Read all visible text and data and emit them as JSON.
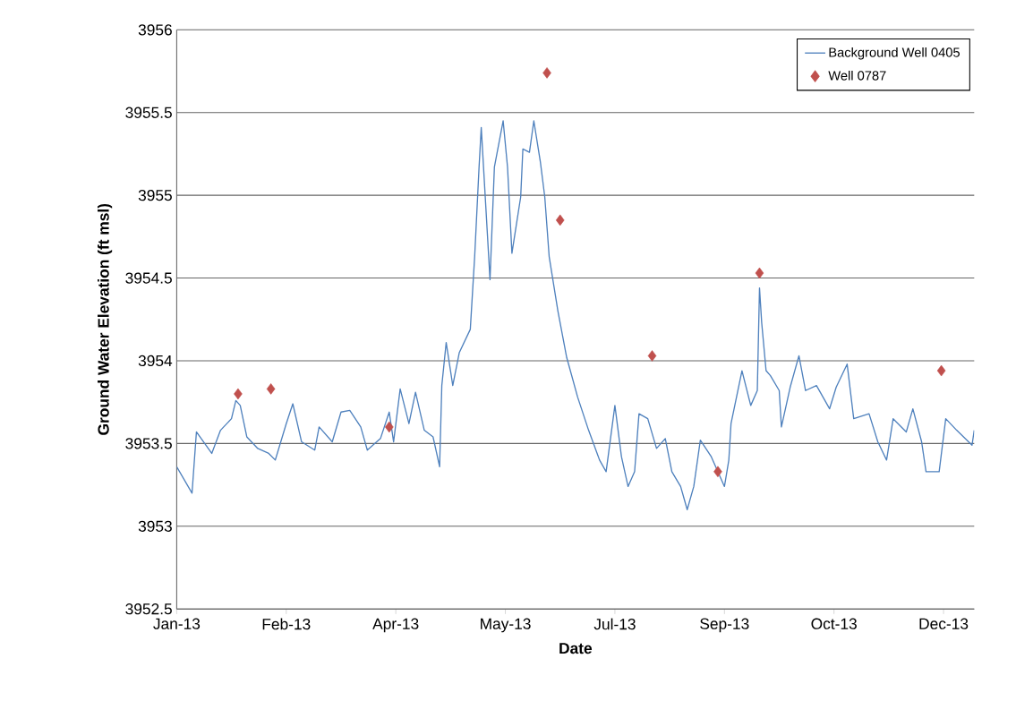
{
  "chart_data": {
    "type": "line",
    "xlabel": "Date",
    "ylabel": "Ground Water Elevation (ft msl)",
    "xlim": [
      "2013-01-01",
      "2013-12-31"
    ],
    "xticks": [
      {
        "value": "2013-01-01",
        "label": "Jan-13"
      },
      {
        "value": "2013-02-20",
        "label": "Feb-13"
      },
      {
        "value": "2013-04-11",
        "label": "Apr-13"
      },
      {
        "value": "2013-05-31",
        "label": "May-13"
      },
      {
        "value": "2013-07-20",
        "label": "Jul-13"
      },
      {
        "value": "2013-09-08",
        "label": "Sep-13"
      },
      {
        "value": "2013-10-28",
        "label": "Oct-13"
      },
      {
        "value": "2013-12-17",
        "label": "Dec-13"
      }
    ],
    "ylim": [
      3952.5,
      3956
    ],
    "yticks": [
      3952.5,
      3953,
      3953.5,
      3954,
      3954.5,
      3955,
      3955.5,
      3956
    ],
    "grid": "y",
    "legend": "top right",
    "series": [
      {
        "name": "Background Well 0405",
        "color": "#4f81bd",
        "line_style": "solid",
        "x": [
          "2013-01-01",
          "2013-01-08",
          "2013-01-10",
          "2013-01-17",
          "2013-01-21",
          "2013-01-26",
          "2013-01-28",
          "2013-01-30",
          "2013-02-02",
          "2013-02-07",
          "2013-02-12",
          "2013-02-15",
          "2013-02-20",
          "2013-02-23",
          "2013-02-27",
          "2013-03-05",
          "2013-03-07",
          "2013-03-13",
          "2013-03-17",
          "2013-03-21",
          "2013-03-26",
          "2013-03-29",
          "2013-04-04",
          "2013-04-08",
          "2013-04-10",
          "2013-04-13",
          "2013-04-17",
          "2013-04-20",
          "2013-04-24",
          "2013-04-28",
          "2013-05-01",
          "2013-05-02",
          "2013-05-04",
          "2013-05-07",
          "2013-05-10",
          "2013-05-15",
          "2013-05-17",
          "2013-05-19",
          "2013-05-20",
          "2013-05-22",
          "2013-05-24",
          "2013-05-26",
          "2013-05-30",
          "2013-06-01",
          "2013-06-03",
          "2013-06-07",
          "2013-06-08",
          "2013-06-11",
          "2013-06-13",
          "2013-06-16",
          "2013-06-18",
          "2013-06-20",
          "2013-06-24",
          "2013-06-28",
          "2013-07-03",
          "2013-07-08",
          "2013-07-13",
          "2013-07-16",
          "2013-07-20",
          "2013-07-23",
          "2013-07-26",
          "2013-07-29",
          "2013-07-31",
          "2013-08-04",
          "2013-08-08",
          "2013-08-12",
          "2013-08-15",
          "2013-08-19",
          "2013-08-22",
          "2013-08-25",
          "2013-08-28",
          "2013-09-02",
          "2013-09-08",
          "2013-09-10",
          "2013-09-11",
          "2013-09-16",
          "2013-09-20",
          "2013-09-23",
          "2013-09-24",
          "2013-09-25",
          "2013-09-27",
          "2013-09-29",
          "2013-10-03",
          "2013-10-04",
          "2013-10-08",
          "2013-10-12",
          "2013-10-15",
          "2013-10-20",
          "2013-10-26",
          "2013-10-29",
          "2013-11-03",
          "2013-11-06",
          "2013-11-13",
          "2013-11-17",
          "2013-11-21",
          "2013-11-24",
          "2013-11-30",
          "2013-12-03",
          "2013-12-07",
          "2013-12-09",
          "2013-12-15",
          "2013-12-18",
          "2013-12-23",
          "2013-12-30",
          "2013-12-31"
        ],
        "values": [
          3953.36,
          3953.2,
          3953.57,
          3953.44,
          3953.58,
          3953.65,
          3953.76,
          3953.73,
          3953.54,
          3953.47,
          3953.44,
          3953.4,
          3953.62,
          3953.74,
          3953.51,
          3953.46,
          3953.6,
          3953.51,
          3953.69,
          3953.7,
          3953.6,
          3953.46,
          3953.53,
          3953.69,
          3953.51,
          3953.83,
          3953.62,
          3953.81,
          3953.58,
          3953.54,
          3953.36,
          3953.85,
          3954.11,
          3953.85,
          3954.05,
          3954.19,
          3954.63,
          3955.17,
          3955.41,
          3954.95,
          3954.49,
          3955.17,
          3955.45,
          3955.17,
          3954.65,
          3954.99,
          3955.28,
          3955.26,
          3955.45,
          3955.2,
          3954.99,
          3954.63,
          3954.3,
          3954.02,
          3953.78,
          3953.58,
          3953.4,
          3953.33,
          3953.73,
          3953.42,
          3953.24,
          3953.33,
          3953.68,
          3953.65,
          3953.47,
          3953.53,
          3953.33,
          3953.24,
          3953.1,
          3953.24,
          3953.52,
          3953.42,
          3953.24,
          3953.4,
          3953.62,
          3953.94,
          3953.73,
          3953.82,
          3954.44,
          3954.23,
          3953.94,
          3953.91,
          3953.82,
          3953.6,
          3953.84,
          3954.03,
          3953.82,
          3953.85,
          3953.71,
          3953.84,
          3953.98,
          3953.65,
          3953.68,
          3953.51,
          3953.4,
          3953.65,
          3953.57,
          3953.71,
          3953.51,
          3953.33,
          3953.33,
          3953.65,
          3953.58,
          3953.49,
          3953.58
        ]
      },
      {
        "name": "Well 0787",
        "type": "scatter",
        "color": "#c0504d",
        "marker": "diamond",
        "x": [
          "2013-01-29",
          "2013-02-13",
          "2013-04-08",
          "2013-06-19",
          "2013-06-25",
          "2013-08-06",
          "2013-09-05",
          "2013-09-24",
          "2013-12-16"
        ],
        "values": [
          3953.8,
          3953.83,
          3953.6,
          3955.74,
          3954.85,
          3954.03,
          3953.33,
          3954.53,
          3953.94
        ]
      }
    ]
  }
}
